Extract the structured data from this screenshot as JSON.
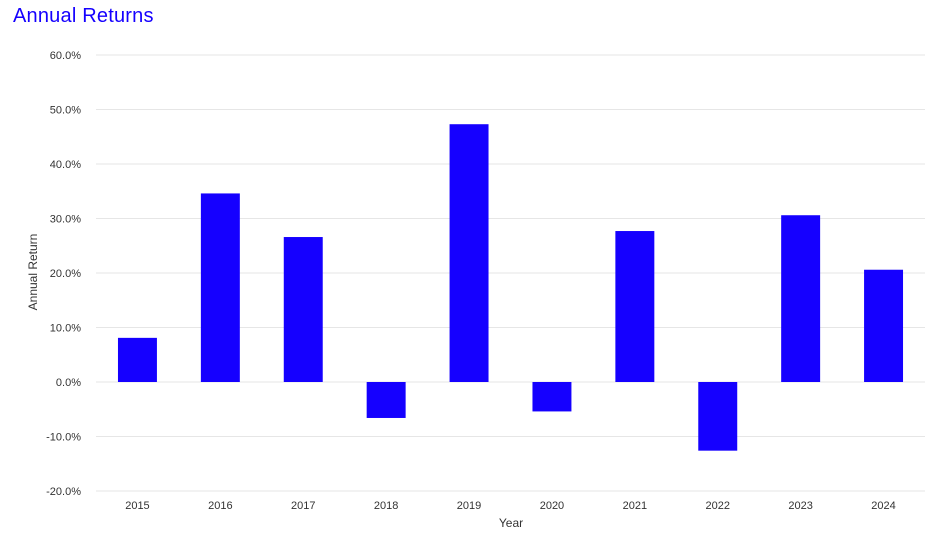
{
  "chart_data": {
    "type": "bar",
    "title": "Annual Returns",
    "xlabel": "Year",
    "ylabel": "Annual Return",
    "categories": [
      "2015",
      "2016",
      "2017",
      "2018",
      "2019",
      "2020",
      "2021",
      "2022",
      "2023",
      "2024"
    ],
    "values": [
      8.1,
      34.6,
      26.6,
      -6.6,
      47.3,
      -5.4,
      27.7,
      -12.6,
      30.6,
      20.6
    ],
    "ylim": [
      -20,
      60
    ],
    "yticks": [
      "-20.0%",
      "-10.0%",
      "0.0%",
      "10.0%",
      "20.0%",
      "30.0%",
      "40.0%",
      "50.0%",
      "60.0%"
    ],
    "grid": true,
    "bar_color": "#1500ff"
  }
}
